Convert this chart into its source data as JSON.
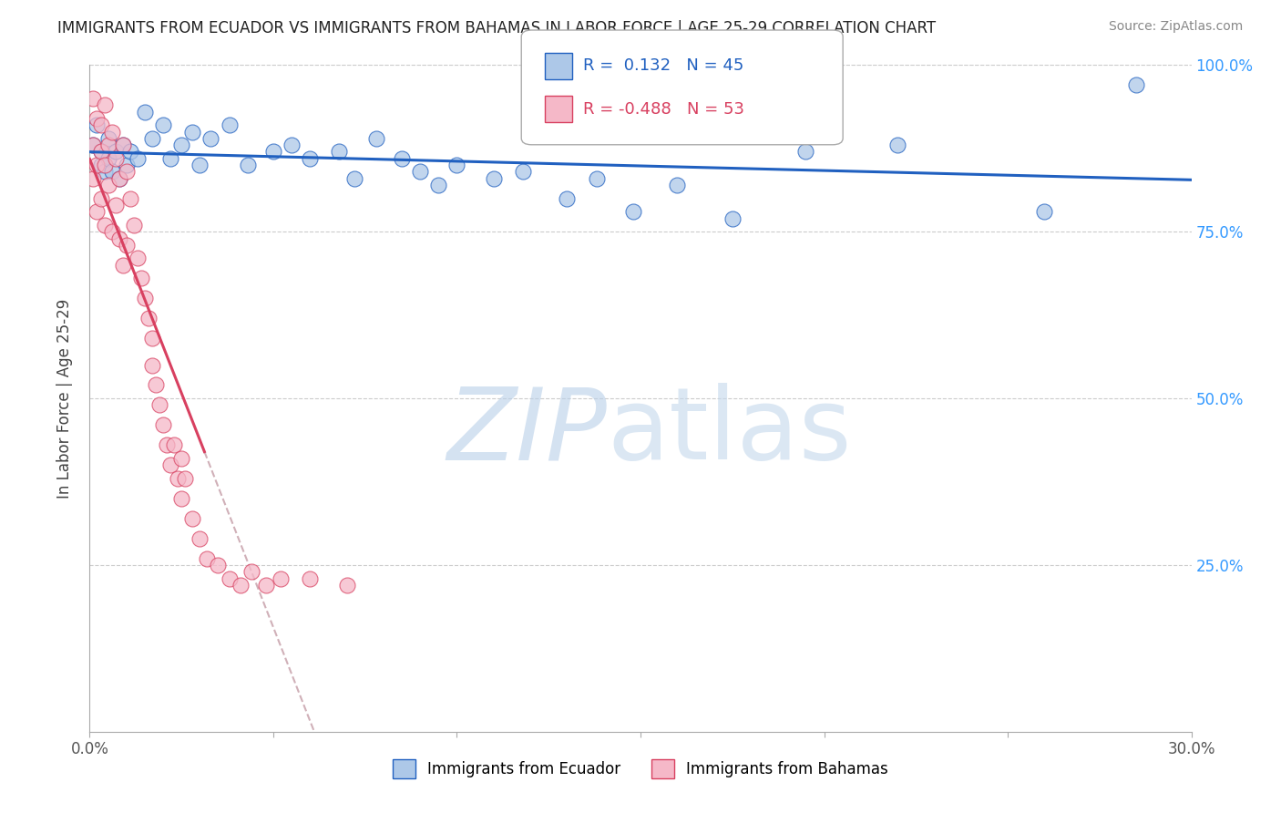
{
  "title": "IMMIGRANTS FROM ECUADOR VS IMMIGRANTS FROM BAHAMAS IN LABOR FORCE | AGE 25-29 CORRELATION CHART",
  "source": "Source: ZipAtlas.com",
  "ylabel": "In Labor Force | Age 25-29",
  "xlim": [
    0.0,
    0.3
  ],
  "ylim": [
    0.0,
    1.0
  ],
  "xticks": [
    0.0,
    0.05,
    0.1,
    0.15,
    0.2,
    0.25,
    0.3
  ],
  "yticks": [
    0.0,
    0.25,
    0.5,
    0.75,
    1.0
  ],
  "ecuador_R": 0.132,
  "ecuador_N": 45,
  "bahamas_R": -0.488,
  "bahamas_N": 53,
  "ecuador_color": "#adc8e8",
  "bahamas_color": "#f5b8c8",
  "ecuador_line_color": "#2060c0",
  "bahamas_line_color": "#d84060",
  "watermark_zip": "ZIP",
  "watermark_atlas": "atlas",
  "watermark_color_zip": "#c0d4e8",
  "watermark_color_atlas": "#b8cce0",
  "ecuador_x": [
    0.001,
    0.002,
    0.003,
    0.003,
    0.004,
    0.005,
    0.005,
    0.006,
    0.007,
    0.008,
    0.009,
    0.01,
    0.011,
    0.013,
    0.015,
    0.017,
    0.02,
    0.022,
    0.025,
    0.028,
    0.03,
    0.033,
    0.038,
    0.043,
    0.05,
    0.055,
    0.06,
    0.068,
    0.072,
    0.078,
    0.085,
    0.09,
    0.095,
    0.1,
    0.11,
    0.118,
    0.13,
    0.138,
    0.148,
    0.16,
    0.175,
    0.195,
    0.22,
    0.26,
    0.285
  ],
  "ecuador_y": [
    0.88,
    0.91,
    0.87,
    0.85,
    0.84,
    0.86,
    0.89,
    0.84,
    0.87,
    0.83,
    0.88,
    0.85,
    0.87,
    0.86,
    0.93,
    0.89,
    0.91,
    0.86,
    0.88,
    0.9,
    0.85,
    0.89,
    0.91,
    0.85,
    0.87,
    0.88,
    0.86,
    0.87,
    0.83,
    0.89,
    0.86,
    0.84,
    0.82,
    0.85,
    0.83,
    0.84,
    0.8,
    0.83,
    0.78,
    0.82,
    0.77,
    0.87,
    0.88,
    0.78,
    0.97
  ],
  "bahamas_x": [
    0.001,
    0.001,
    0.001,
    0.002,
    0.002,
    0.002,
    0.003,
    0.003,
    0.003,
    0.004,
    0.004,
    0.004,
    0.005,
    0.005,
    0.006,
    0.006,
    0.007,
    0.007,
    0.008,
    0.008,
    0.009,
    0.009,
    0.01,
    0.01,
    0.011,
    0.012,
    0.013,
    0.014,
    0.015,
    0.016,
    0.017,
    0.017,
    0.018,
    0.019,
    0.02,
    0.021,
    0.022,
    0.023,
    0.024,
    0.025,
    0.025,
    0.026,
    0.028,
    0.03,
    0.032,
    0.035,
    0.038,
    0.041,
    0.044,
    0.048,
    0.052,
    0.06,
    0.07
  ],
  "bahamas_y": [
    0.95,
    0.88,
    0.83,
    0.92,
    0.85,
    0.78,
    0.91,
    0.87,
    0.8,
    0.94,
    0.85,
    0.76,
    0.88,
    0.82,
    0.9,
    0.75,
    0.86,
    0.79,
    0.83,
    0.74,
    0.88,
    0.7,
    0.84,
    0.73,
    0.8,
    0.76,
    0.71,
    0.68,
    0.65,
    0.62,
    0.59,
    0.55,
    0.52,
    0.49,
    0.46,
    0.43,
    0.4,
    0.43,
    0.38,
    0.41,
    0.35,
    0.38,
    0.32,
    0.29,
    0.26,
    0.25,
    0.23,
    0.22,
    0.24,
    0.22,
    0.23,
    0.23,
    0.22
  ]
}
